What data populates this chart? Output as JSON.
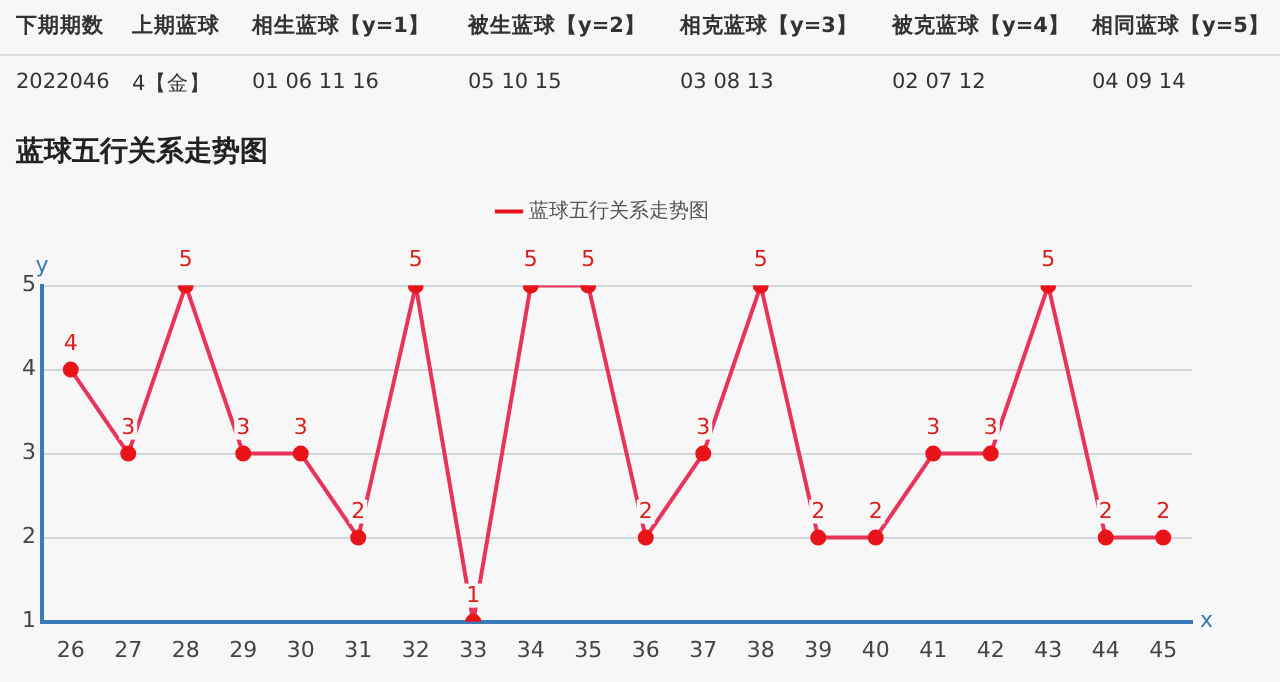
{
  "chart_data": {
    "type": "line",
    "title": "蓝球五行关系走势图",
    "xlabel": "x",
    "ylabel": "y",
    "annotations": [
      "下期期数",
      "上期蓝球",
      "相生蓝球【y=1】",
      "被生蓝球【y=2】",
      "相克蓝球【y=3】",
      "被克蓝球【y=4】",
      "相同蓝球【y=5】",
      "2022046",
      "4【金】",
      "01 06 11 16",
      "05 10 15",
      "03 08 13",
      "02 07 12",
      "04 09 14"
    ],
    "categories": [
      "26",
      "27",
      "28",
      "29",
      "30",
      "31",
      "32",
      "33",
      "34",
      "35",
      "36",
      "37",
      "38",
      "39",
      "40",
      "41",
      "42",
      "43",
      "44",
      "45"
    ],
    "series": [
      {
        "name": "蓝球五行关系走势图",
        "color": "#e8335a",
        "values": [
          4,
          3,
          5,
          3,
          3,
          2,
          5,
          1,
          5,
          5,
          2,
          3,
          5,
          2,
          2,
          3,
          3,
          5,
          2,
          2
        ]
      }
    ],
    "ylim": [
      1,
      5
    ],
    "yticks": [
      1,
      2,
      3,
      4,
      5
    ],
    "grid": "y",
    "legend": "top",
    "marker": "circle",
    "line_style": "solid",
    "data_labels": true
  }
}
